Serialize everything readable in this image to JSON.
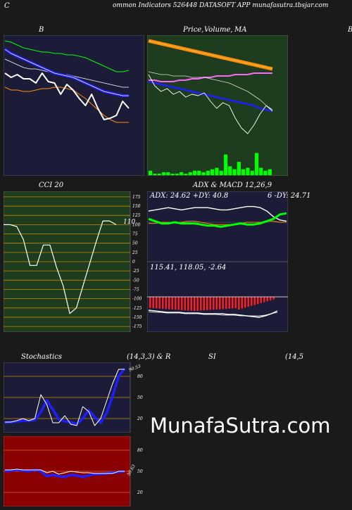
{
  "header": {
    "left": "C",
    "center": "ommon  Indicators 526448 DATASOFT APP munafasutra.tbsjar.com"
  },
  "titles": {
    "bb": "B",
    "price_a": "Price,",
    "price_b": "Volume,",
    "price_c": "MA",
    "right_edge": "B",
    "cci": "CCI 20",
    "adx_macd": "ADX  & MACD 12,26,9",
    "stoch": "Stochastics",
    "stoch_params": "(14,3,3) & R",
    "rsi": "SI",
    "rsi_params": "(14,5"
  },
  "labels": {
    "cci_value": "110",
    "adx_line": "ADX: 24.62  +DY: 40.8",
    "adx_right": "6  -DY: 24.71",
    "macd_line": "115.41,  118.05,  -2.64",
    "stoch_value": "90.53",
    "rsi_value": "50.63"
  },
  "watermark": "MunafaSutra.com",
  "colors": {
    "navy": "#1c1c38",
    "green_panel": "#1e3c1e",
    "red_panel": "#8b0000",
    "orange": "#ff8c00",
    "blue": "#1e1eff",
    "lime": "#00ff00",
    "magenta": "#ff66ff"
  },
  "chart_data": [
    {
      "type": "line",
      "title": "B",
      "series": [
        {
          "values": [
            96,
            95,
            93,
            91,
            90,
            89,
            88,
            88,
            87,
            87,
            86,
            86,
            85,
            84,
            82,
            80,
            78,
            76,
            74,
            74,
            75
          ]
        },
        {
          "values": [
            83,
            81,
            79,
            77,
            76,
            76,
            75,
            74,
            73,
            72,
            72,
            71,
            70,
            69,
            68,
            67,
            66,
            65,
            64,
            63,
            63
          ]
        },
        {
          "values": [
            90,
            87,
            85,
            83,
            81,
            79,
            77,
            75,
            73,
            72,
            71,
            70,
            68,
            66,
            64,
            62,
            60,
            59,
            58,
            57,
            57
          ]
        },
        {
          "values": [
            63,
            61,
            61,
            60,
            60,
            61,
            62,
            62,
            63,
            63,
            62,
            61,
            58,
            55,
            51,
            47,
            43,
            40,
            38,
            38,
            38
          ]
        },
        {
          "values": [
            73,
            70,
            72,
            69,
            69,
            66,
            73,
            67,
            66,
            58,
            65,
            61,
            55,
            50,
            58,
            48,
            40,
            41,
            43,
            53,
            48
          ]
        }
      ]
    },
    {
      "type": "line",
      "title": "Price, Volume, MA",
      "series": [
        {
          "values": [
            96,
            95,
            94,
            93,
            92,
            91,
            90,
            89,
            88,
            87,
            86,
            85,
            84,
            83,
            82,
            81,
            80,
            79,
            78,
            77,
            76
          ]
        },
        {
          "values": [
            68,
            68,
            67,
            67,
            67,
            68,
            68,
            69,
            69,
            70,
            70,
            71,
            71,
            71,
            72,
            72,
            72,
            73,
            73,
            73,
            73
          ]
        },
        {
          "values": [
            67,
            66,
            65,
            64,
            63,
            62,
            61,
            60,
            59,
            58,
            57,
            56,
            55,
            54,
            53,
            52,
            51,
            50,
            48,
            47,
            46
          ]
        },
        {
          "values": [
            74,
            73,
            72,
            72,
            71,
            71,
            71,
            70,
            70,
            70,
            69,
            68,
            67,
            66,
            64,
            62,
            60,
            57,
            54,
            50,
            47
          ]
        },
        {
          "values": [
            72,
            64,
            60,
            62,
            58,
            60,
            56,
            58,
            57,
            59,
            53,
            48,
            52,
            50,
            41,
            34,
            30,
            36,
            44,
            50,
            46
          ]
        },
        {
          "values": [
            3,
            1,
            1,
            2,
            2,
            1,
            1,
            2,
            1,
            2,
            3,
            3,
            2,
            3,
            4,
            5,
            3,
            14,
            6,
            4,
            9,
            4,
            5,
            3,
            15,
            5,
            3,
            4
          ]
        }
      ]
    },
    {
      "type": "line",
      "title": "CCI 20",
      "y_ticks": [
        175,
        150,
        125,
        100,
        75,
        50,
        25,
        0,
        -25,
        -50,
        -75,
        -100,
        -125,
        -150,
        -175
      ],
      "ylim": [
        -190,
        190
      ],
      "values": [
        100,
        100,
        95,
        60,
        -10,
        -10,
        45,
        45,
        -15,
        -65,
        -140,
        -125,
        -65,
        -5,
        55,
        110,
        110,
        100
      ]
    },
    {
      "type": "line",
      "title": "ADX & MACD 12,26,9",
      "series": [
        {
          "name": "ADX",
          "values": [
            38,
            36,
            34,
            34,
            35,
            34,
            34,
            34,
            33,
            32,
            32,
            31,
            32,
            33,
            34,
            33,
            33,
            34,
            36,
            38,
            42,
            43
          ]
        },
        {
          "name": "+DY",
          "values": [
            45,
            46,
            47,
            48,
            47,
            46,
            47,
            48,
            48,
            48,
            47,
            46,
            46,
            47,
            48,
            49,
            49,
            48,
            45,
            40,
            37,
            36
          ]
        },
        {
          "name": "-DY",
          "values": [
            34,
            34,
            35,
            35,
            35,
            35,
            36,
            36,
            35,
            34,
            33,
            33,
            33,
            33,
            34,
            35,
            35,
            35,
            36,
            36,
            35,
            35
          ]
        }
      ]
    },
    {
      "type": "line",
      "title": "Stochastics (14,3,3)",
      "y_ticks": [
        80,
        50,
        20
      ],
      "ylim": [
        0,
        100
      ],
      "series": [
        {
          "values": [
            15,
            15,
            17,
            20,
            17,
            20,
            54,
            40,
            14,
            14,
            24,
            12,
            10,
            37,
            30,
            10,
            20,
            45,
            70,
            90,
            90
          ]
        },
        {
          "values": [
            14,
            15,
            16,
            17,
            17,
            18,
            29,
            46,
            33,
            19,
            16,
            15,
            12,
            20,
            32,
            22,
            14,
            28,
            52,
            80,
            91
          ]
        }
      ]
    },
    {
      "type": "line",
      "title": "SI (14,5",
      "y_ticks": [
        80,
        50,
        20
      ],
      "ylim": [
        0,
        100
      ],
      "series": [
        {
          "values": [
            52,
            52,
            53,
            52,
            52,
            52,
            52,
            48,
            50,
            46,
            48,
            50,
            49,
            48,
            48,
            47,
            47,
            47,
            47,
            50,
            50
          ]
        },
        {
          "values": [
            50,
            51,
            52,
            51,
            50,
            52,
            50,
            43,
            45,
            43,
            42,
            45,
            44,
            42,
            44,
            46,
            46,
            47,
            48,
            49,
            50
          ]
        }
      ]
    }
  ]
}
